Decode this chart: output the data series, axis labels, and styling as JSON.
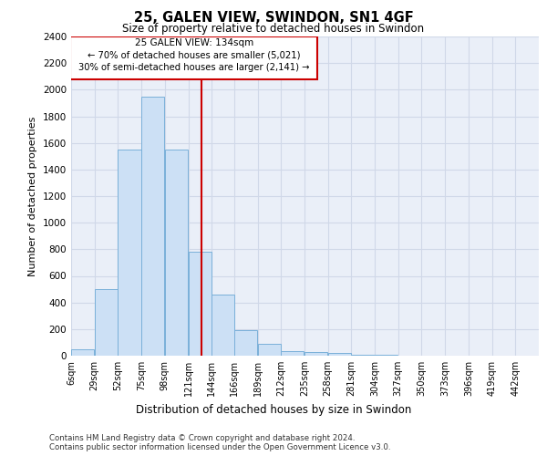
{
  "title1": "25, GALEN VIEW, SWINDON, SN1 4GF",
  "title2": "Size of property relative to detached houses in Swindon",
  "xlabel": "Distribution of detached houses by size in Swindon",
  "ylabel": "Number of detached properties",
  "footnote1": "Contains HM Land Registry data © Crown copyright and database right 2024.",
  "footnote2": "Contains public sector information licensed under the Open Government Licence v3.0.",
  "annotation_title": "25 GALEN VIEW: 134sqm",
  "annotation_line1": "← 70% of detached houses are smaller (5,021)",
  "annotation_line2": "30% of semi-detached houses are larger (2,141) →",
  "bar_color": "#cce0f5",
  "bar_edge_color": "#7ab0d9",
  "vline_color": "#cc0000",
  "vline_x": 134,
  "bins": [
    6,
    29,
    52,
    75,
    98,
    121,
    144,
    166,
    189,
    212,
    235,
    258,
    281,
    304,
    327,
    350,
    373,
    396,
    419,
    442,
    465
  ],
  "bar_heights": [
    50,
    500,
    1550,
    1950,
    1550,
    780,
    460,
    190,
    90,
    35,
    25,
    20,
    8,
    5,
    0,
    0,
    0,
    0,
    0,
    0
  ],
  "ylim": [
    0,
    2400
  ],
  "yticks": [
    0,
    200,
    400,
    600,
    800,
    1000,
    1200,
    1400,
    1600,
    1800,
    2000,
    2200,
    2400
  ],
  "grid_color": "#d0d8e8",
  "plot_bg_color": "#eaeff8"
}
